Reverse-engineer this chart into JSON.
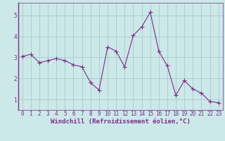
{
  "x": [
    0,
    1,
    2,
    3,
    4,
    5,
    6,
    7,
    8,
    9,
    10,
    11,
    12,
    13,
    14,
    15,
    16,
    17,
    18,
    19,
    20,
    21,
    22,
    23
  ],
  "y": [
    3.05,
    3.15,
    2.75,
    2.85,
    2.95,
    2.85,
    2.65,
    2.55,
    1.8,
    1.45,
    3.5,
    3.3,
    2.55,
    4.05,
    4.45,
    5.15,
    3.3,
    2.6,
    1.2,
    1.9,
    1.5,
    1.3,
    0.9,
    0.85
  ],
  "line_color": "#7b2d8b",
  "marker": "+",
  "markersize": 4,
  "linewidth": 0.8,
  "bg_color": "#cce8e8",
  "grid_color": "#a8cccc",
  "xlabel": "Windchill (Refroidissement éolien,°C)",
  "ylim": [
    0.5,
    5.6
  ],
  "xlim": [
    -0.5,
    23.5
  ],
  "yticks": [
    1,
    2,
    3,
    4,
    5
  ],
  "xticks": [
    0,
    1,
    2,
    3,
    4,
    5,
    6,
    7,
    8,
    9,
    10,
    11,
    12,
    13,
    14,
    15,
    16,
    17,
    18,
    19,
    20,
    21,
    22,
    23
  ],
  "tick_fontsize": 5.5,
  "xlabel_fontsize": 6.5,
  "tick_color": "#7b2d8b",
  "spine_color": "#7b2d8b"
}
